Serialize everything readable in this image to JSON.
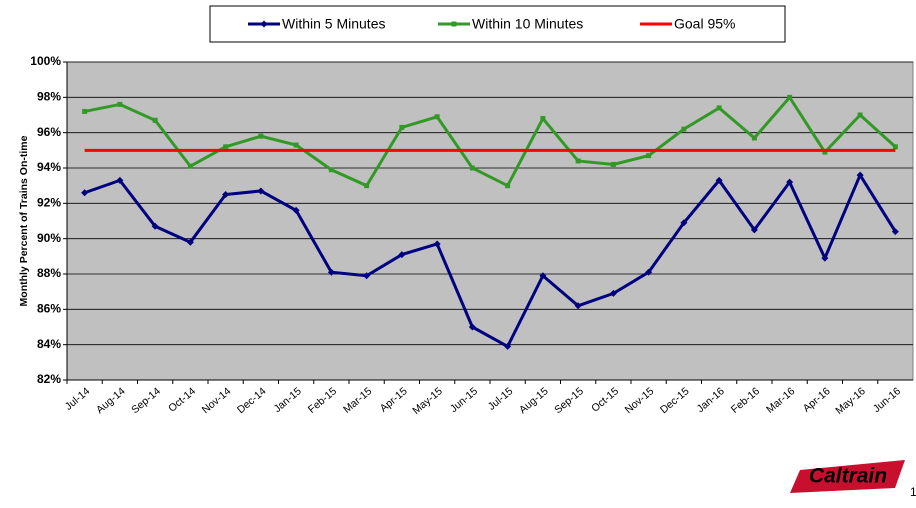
{
  "chart_data": {
    "type": "line",
    "y_axis_label": "Monthly Percent of Trains On-time",
    "categories": [
      "Jul-14",
      "Aug-14",
      "Sep-14",
      "Oct-14",
      "Nov-14",
      "Dec-14",
      "Jan-15",
      "Feb-15",
      "Mar-15",
      "Apr-15",
      "May-15",
      "Jun-15",
      "Jul-15",
      "Aug-15",
      "Sep-15",
      "Oct-15",
      "Nov-15",
      "Dec-15",
      "Jan-16",
      "Feb-16",
      "Mar-16",
      "Apr-16",
      "May-16",
      "Jun-16"
    ],
    "series": [
      {
        "name": "Within 5 Minutes",
        "color": "#000080",
        "marker": "diamond",
        "values": [
          92.6,
          93.3,
          90.7,
          89.8,
          92.5,
          92.7,
          91.6,
          88.1,
          87.9,
          89.1,
          89.7,
          85.0,
          83.9,
          87.9,
          86.2,
          86.9,
          88.1,
          90.9,
          93.3,
          90.5,
          93.2,
          88.9,
          93.6,
          90.4
        ]
      },
      {
        "name": "Within 10 Minutes",
        "color": "#339926",
        "marker": "square",
        "values": [
          97.2,
          97.6,
          96.7,
          94.1,
          95.2,
          95.8,
          95.3,
          93.9,
          93.0,
          96.3,
          96.9,
          94.0,
          93.0,
          96.8,
          94.4,
          94.2,
          94.7,
          96.2,
          97.4,
          95.7,
          98.0,
          94.9,
          97.0,
          95.2
        ]
      },
      {
        "name": "Goal 95%",
        "color": "#ff0000",
        "marker": "none",
        "values": [
          95,
          95,
          95,
          95,
          95,
          95,
          95,
          95,
          95,
          95,
          95,
          95,
          95,
          95,
          95,
          95,
          95,
          95,
          95,
          95,
          95,
          95,
          95,
          95
        ]
      }
    ],
    "ylim": [
      82,
      100
    ],
    "yticks": [
      {
        "value": 82,
        "label": "82%"
      },
      {
        "value": 84,
        "label": "84%"
      },
      {
        "value": 86,
        "label": "86%"
      },
      {
        "value": 88,
        "label": "88%"
      },
      {
        "value": 90,
        "label": "90%"
      },
      {
        "value": 92,
        "label": "92%"
      },
      {
        "value": 94,
        "label": "94%"
      },
      {
        "value": 96,
        "label": "96%"
      },
      {
        "value": 98,
        "label": "98%"
      },
      {
        "value": 100,
        "label": "100%"
      }
    ],
    "grid": true,
    "legend": "top",
    "plot_background": "#c0c0c0"
  },
  "logo": "Caltrain",
  "page_number": "1"
}
